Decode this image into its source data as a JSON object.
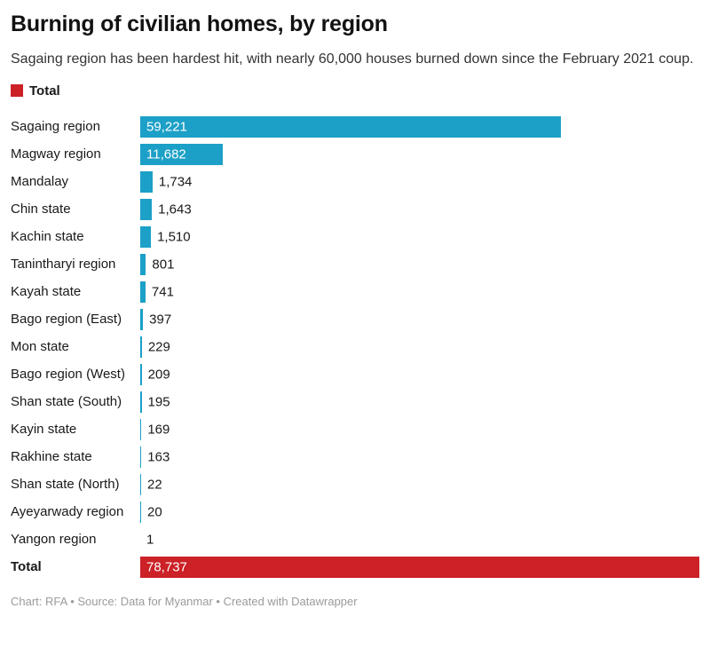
{
  "header": {
    "title": "Burning of civilian homes, by region",
    "subtitle": "Sagaing region has been hardest hit, with nearly 60,000 houses burned down since the February 2021 coup."
  },
  "legend": {
    "label": "Total",
    "color": "#cb2127"
  },
  "chart_data": {
    "type": "bar",
    "orientation": "horizontal",
    "title": "Burning of civilian homes, by region",
    "xlabel": "",
    "ylabel": "",
    "xmax": 78737,
    "grid": false,
    "bar_color": "#1ca0c7",
    "total_bar_color": "#cb2127",
    "categories": [
      "Sagaing region",
      "Magway region",
      "Mandalay",
      "Chin state",
      "Kachin state",
      "Tanintharyi region",
      "Kayah state",
      "Bago region (East)",
      "Mon state",
      "Bago region (West)",
      "Shan state (South)",
      "Kayin state",
      "Rakhine state",
      "Shan state (North)",
      "Ayeyarwady region",
      "Yangon region",
      "Total"
    ],
    "values": [
      59221,
      11682,
      1734,
      1643,
      1510,
      801,
      741,
      397,
      229,
      209,
      195,
      169,
      163,
      22,
      20,
      1,
      78737
    ],
    "rows": [
      {
        "label": "Sagaing region",
        "value": 59221,
        "display": "59,221",
        "is_total": false
      },
      {
        "label": "Magway region",
        "value": 11682,
        "display": "11,682",
        "is_total": false
      },
      {
        "label": "Mandalay",
        "value": 1734,
        "display": "1,734",
        "is_total": false
      },
      {
        "label": "Chin state",
        "value": 1643,
        "display": "1,643",
        "is_total": false
      },
      {
        "label": "Kachin state",
        "value": 1510,
        "display": "1,510",
        "is_total": false
      },
      {
        "label": "Tanintharyi region",
        "value": 801,
        "display": "801",
        "is_total": false
      },
      {
        "label": "Kayah state",
        "value": 741,
        "display": "741",
        "is_total": false
      },
      {
        "label": "Bago region (East)",
        "value": 397,
        "display": "397",
        "is_total": false
      },
      {
        "label": "Mon state",
        "value": 229,
        "display": "229",
        "is_total": false
      },
      {
        "label": "Bago region (West)",
        "value": 209,
        "display": "209",
        "is_total": false
      },
      {
        "label": "Shan state (South)",
        "value": 195,
        "display": "195",
        "is_total": false
      },
      {
        "label": "Kayin state",
        "value": 169,
        "display": "169",
        "is_total": false
      },
      {
        "label": "Rakhine state",
        "value": 163,
        "display": "163",
        "is_total": false
      },
      {
        "label": "Shan state (North)",
        "value": 22,
        "display": "22",
        "is_total": false
      },
      {
        "label": "Ayeyarwady region",
        "value": 20,
        "display": "20",
        "is_total": false
      },
      {
        "label": "Yangon region",
        "value": 1,
        "display": "1",
        "is_total": false
      },
      {
        "label": "Total",
        "value": 78737,
        "display": "78,737",
        "is_total": true
      }
    ]
  },
  "footer": {
    "text": "Chart: RFA • Source: Data for Myanmar • Created with Datawrapper"
  }
}
